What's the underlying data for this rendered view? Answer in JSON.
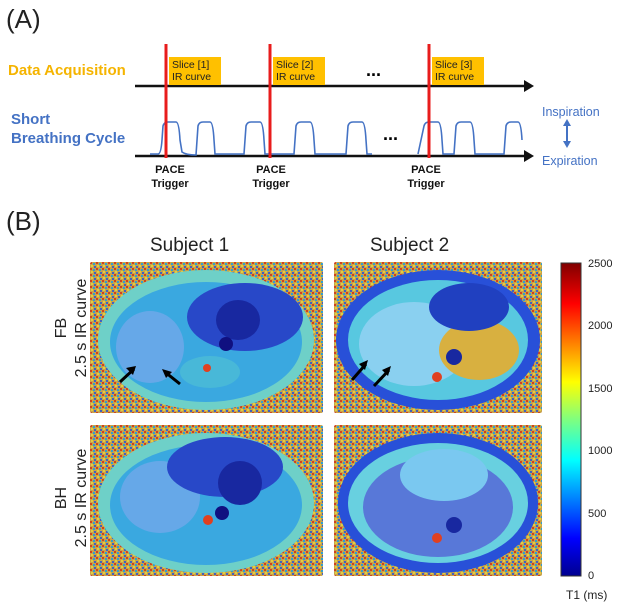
{
  "panel_a": {
    "label": "(A)",
    "row_acq_label": "Data Acquisition",
    "row_breath_line1": "Short",
    "row_breath_line2": "Breathing Cycle",
    "slices": [
      {
        "line1": "Slice [1]",
        "line2": "IR curve"
      },
      {
        "line1": "Slice [2]",
        "line2": "IR curve"
      },
      {
        "line1": "Slice [3]",
        "line2": "IR curve"
      }
    ],
    "ellipsis": "...",
    "triggers": [
      {
        "line1": "PACE",
        "line2": "Trigger"
      },
      {
        "line1": "PACE",
        "line2": "Trigger"
      },
      {
        "line1": "PACE",
        "line2": "Trigger"
      }
    ],
    "inspiration": "Inspiration",
    "expiration": "Expiration"
  },
  "panel_b": {
    "label": "(B)",
    "subject1": "Subject 1",
    "subject2": "Subject 2",
    "row1_line1": "FB",
    "row1_line2": "2.5 s IR curve",
    "row2_line1": "BH",
    "row2_line2": "2.5 s IR curve",
    "colorbar_ticks": [
      "2500",
      "2000",
      "1500",
      "1000",
      "500",
      "0"
    ],
    "colorbar_label": "T1 (ms)"
  },
  "colors": {
    "trigger_red": "#e81c1c",
    "acq_yellow": "#ffc000",
    "breath_blue": "#4472c4"
  }
}
